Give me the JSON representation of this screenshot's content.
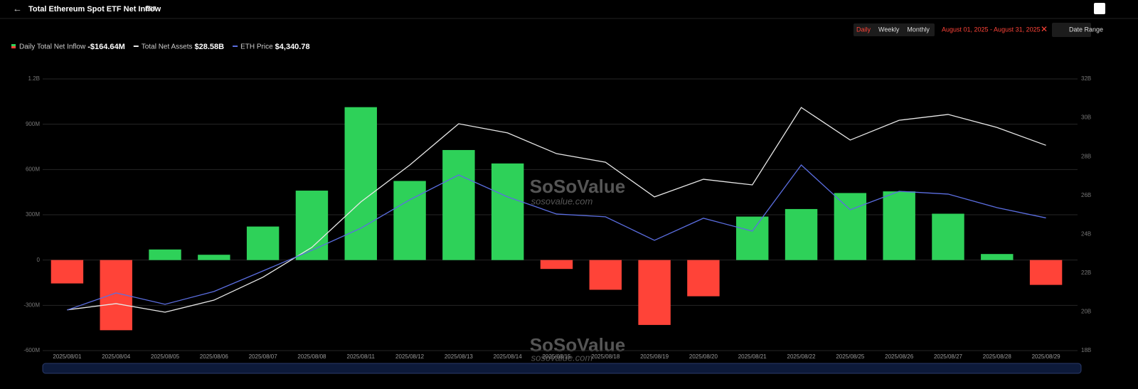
{
  "header": {
    "title": "Total Ethereum Spot ETF Net Inflow",
    "timezone": "EST"
  },
  "controls": {
    "periods": [
      "Daily",
      "Weekly",
      "Monthly"
    ],
    "active_period": "Daily",
    "date_range_text": "August 01, 2025 - August 31, 2025",
    "date_range_button": "Date Range"
  },
  "watermark": {
    "brand": "SoSoValue",
    "site": "sosovalue.com"
  },
  "chart_data": {
    "type": "bar",
    "categories": [
      "2025/08/01",
      "2025/08/04",
      "2025/08/05",
      "2025/08/06",
      "2025/08/07",
      "2025/08/08",
      "2025/08/11",
      "2025/08/12",
      "2025/08/13",
      "2025/08/14",
      "2025/08/15",
      "2025/08/18",
      "2025/08/19",
      "2025/08/20",
      "2025/08/21",
      "2025/08/22",
      "2025/08/25",
      "2025/08/26",
      "2025/08/27",
      "2025/08/28",
      "2025/08/29"
    ],
    "series": [
      {
        "name": "Daily Total Net Inflow",
        "latest_label": "-$164.64M",
        "type": "bar",
        "positive_color": "#2ed159",
        "negative_color": "#ff4338",
        "values": [
          -155,
          -465,
          70,
          35,
          222,
          460,
          1013,
          524,
          729,
          640,
          -59,
          -197,
          -430,
          -240,
          288,
          338,
          444,
          455,
          307,
          40,
          -164.64
        ]
      },
      {
        "name": "Total Net Assets",
        "latest_label": "$28.58B",
        "type": "line",
        "axis": "y2",
        "color": "#e8e8e8",
        "values": [
          20.1,
          20.42,
          19.98,
          20.6,
          21.78,
          23.32,
          25.66,
          27.56,
          29.69,
          29.22,
          28.15,
          27.71,
          25.92,
          26.83,
          26.54,
          30.53,
          28.85,
          29.87,
          30.17,
          29.5,
          28.58
        ]
      },
      {
        "name": "ETH Price",
        "latest_label": "$4,340.78",
        "type": "line",
        "axis": "y3",
        "color": "#5b6ee1",
        "values": [
          3490,
          3648,
          3543,
          3661,
          3851,
          4042,
          4246,
          4508,
          4738,
          4535,
          4377,
          4351,
          4134,
          4338,
          4219,
          4830,
          4416,
          4587,
          4561,
          4436,
          4340.78
        ]
      }
    ],
    "ylim": [
      -600,
      1200
    ],
    "yticks": [
      {
        "value": -600,
        "label": "-600M"
      },
      {
        "value": -300,
        "label": "-300M"
      },
      0,
      {
        "value": 300,
        "label": "300M"
      },
      {
        "value": 600,
        "label": "600M"
      },
      {
        "value": 900,
        "label": "900M"
      },
      {
        "value": 1200,
        "label": "1.2B"
      }
    ],
    "y2lim": [
      18,
      32
    ],
    "y2ticks": [
      {
        "value": 18,
        "label": "18B"
      },
      {
        "value": 20,
        "label": "20B"
      },
      {
        "value": 22,
        "label": "22B"
      },
      {
        "value": 24,
        "label": "24B"
      },
      {
        "value": 26,
        "label": "26B"
      },
      {
        "value": 28,
        "label": "28B"
      },
      {
        "value": 30,
        "label": "30B"
      },
      {
        "value": 32,
        "label": "32B"
      }
    ],
    "y3lim": [
      3115,
      5625
    ],
    "grid": true
  }
}
